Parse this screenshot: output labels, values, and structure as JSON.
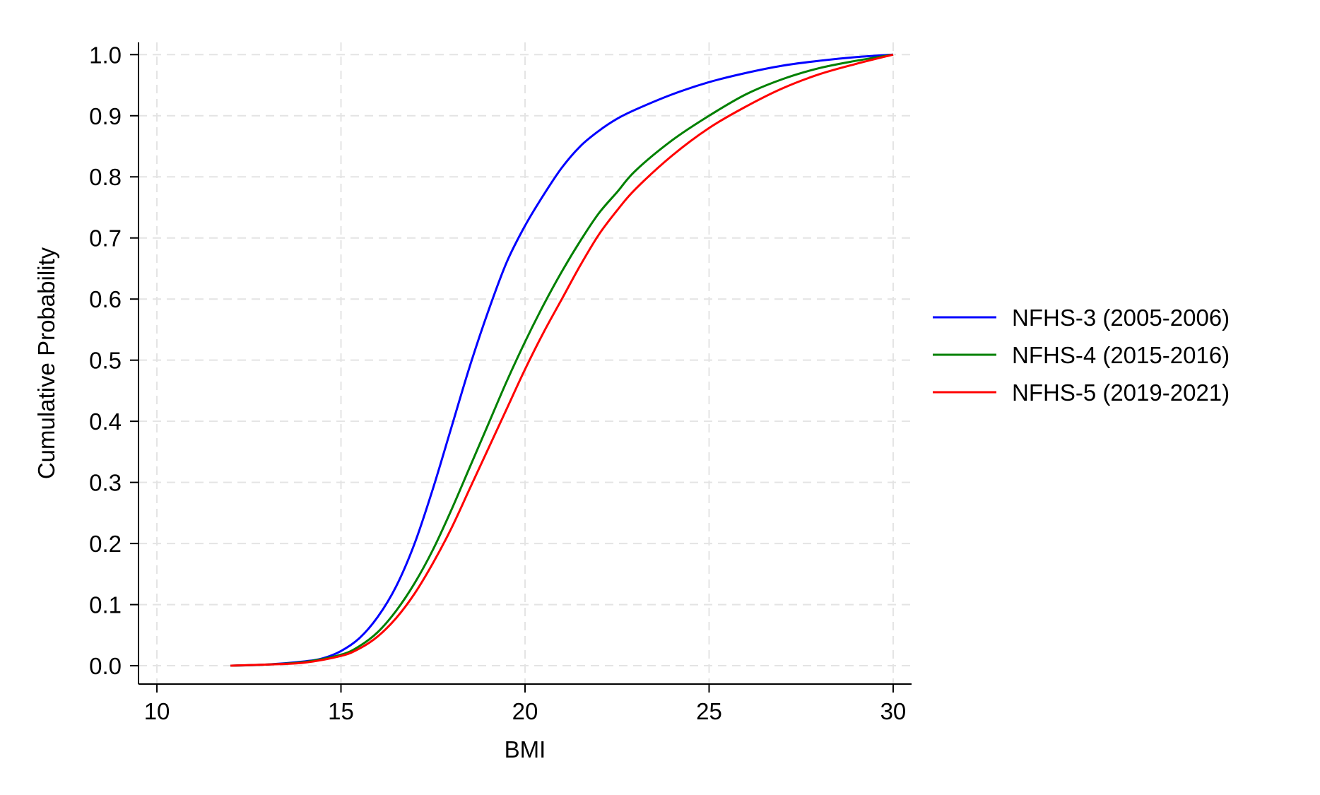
{
  "chart_data": {
    "type": "line",
    "title": "",
    "xlabel": "BMI",
    "ylabel": "Cumulative Probability",
    "xlim": [
      9.5,
      30.5
    ],
    "ylim": [
      -0.03,
      1.02
    ],
    "x_ticks": [
      10,
      15,
      20,
      25,
      30
    ],
    "x_tick_labels": [
      "10",
      "15",
      "20",
      "25",
      "30"
    ],
    "y_ticks": [
      0.0,
      0.1,
      0.2,
      0.3,
      0.4,
      0.5,
      0.6,
      0.7,
      0.8,
      0.9,
      1.0
    ],
    "y_tick_labels": [
      "0.0",
      "0.1",
      "0.2",
      "0.3",
      "0.4",
      "0.5",
      "0.6",
      "0.7",
      "0.8",
      "0.9",
      "1.0"
    ],
    "grid": true,
    "legend_position": "right",
    "series": [
      {
        "name": "NFHS-3 (2005-2006)",
        "color": "#0000ff",
        "points": [
          [
            12,
            0.0
          ],
          [
            13,
            0.002
          ],
          [
            14,
            0.007
          ],
          [
            14.5,
            0.012
          ],
          [
            15,
            0.024
          ],
          [
            15.5,
            0.045
          ],
          [
            16,
            0.08
          ],
          [
            16.5,
            0.13
          ],
          [
            17,
            0.2
          ],
          [
            17.5,
            0.29
          ],
          [
            18,
            0.39
          ],
          [
            18.5,
            0.49
          ],
          [
            19,
            0.58
          ],
          [
            19.5,
            0.66
          ],
          [
            20,
            0.72
          ],
          [
            20.5,
            0.77
          ],
          [
            21,
            0.815
          ],
          [
            21.5,
            0.85
          ],
          [
            22,
            0.875
          ],
          [
            22.5,
            0.895
          ],
          [
            23,
            0.91
          ],
          [
            24,
            0.935
          ],
          [
            25,
            0.955
          ],
          [
            26,
            0.97
          ],
          [
            27,
            0.982
          ],
          [
            28,
            0.99
          ],
          [
            29,
            0.996
          ],
          [
            30,
            1.0
          ]
        ]
      },
      {
        "name": "NFHS-4 (2015-2016)",
        "color": "#008000",
        "points": [
          [
            12,
            0.0
          ],
          [
            13,
            0.002
          ],
          [
            14,
            0.006
          ],
          [
            15,
            0.018
          ],
          [
            15.5,
            0.032
          ],
          [
            16,
            0.055
          ],
          [
            16.5,
            0.09
          ],
          [
            17,
            0.135
          ],
          [
            17.5,
            0.19
          ],
          [
            18,
            0.255
          ],
          [
            18.5,
            0.325
          ],
          [
            19,
            0.395
          ],
          [
            19.5,
            0.465
          ],
          [
            20,
            0.53
          ],
          [
            20.5,
            0.59
          ],
          [
            21,
            0.645
          ],
          [
            21.5,
            0.695
          ],
          [
            22,
            0.74
          ],
          [
            22.5,
            0.775
          ],
          [
            23,
            0.81
          ],
          [
            24,
            0.86
          ],
          [
            25,
            0.9
          ],
          [
            26,
            0.935
          ],
          [
            27,
            0.96
          ],
          [
            28,
            0.978
          ],
          [
            29,
            0.99
          ],
          [
            30,
            1.0
          ]
        ]
      },
      {
        "name": "NFHS-5 (2019-2021)",
        "color": "#ff0000",
        "points": [
          [
            12,
            0.0
          ],
          [
            13,
            0.002
          ],
          [
            14,
            0.005
          ],
          [
            15,
            0.016
          ],
          [
            15.5,
            0.028
          ],
          [
            16,
            0.048
          ],
          [
            16.5,
            0.078
          ],
          [
            17,
            0.118
          ],
          [
            17.5,
            0.168
          ],
          [
            18,
            0.225
          ],
          [
            18.5,
            0.29
          ],
          [
            19,
            0.355
          ],
          [
            19.5,
            0.42
          ],
          [
            20,
            0.485
          ],
          [
            20.5,
            0.545
          ],
          [
            21,
            0.6
          ],
          [
            21.5,
            0.655
          ],
          [
            22,
            0.705
          ],
          [
            22.5,
            0.745
          ],
          [
            23,
            0.78
          ],
          [
            24,
            0.835
          ],
          [
            25,
            0.88
          ],
          [
            26,
            0.915
          ],
          [
            27,
            0.945
          ],
          [
            28,
            0.968
          ],
          [
            29,
            0.985
          ],
          [
            30,
            1.0
          ]
        ]
      }
    ]
  }
}
